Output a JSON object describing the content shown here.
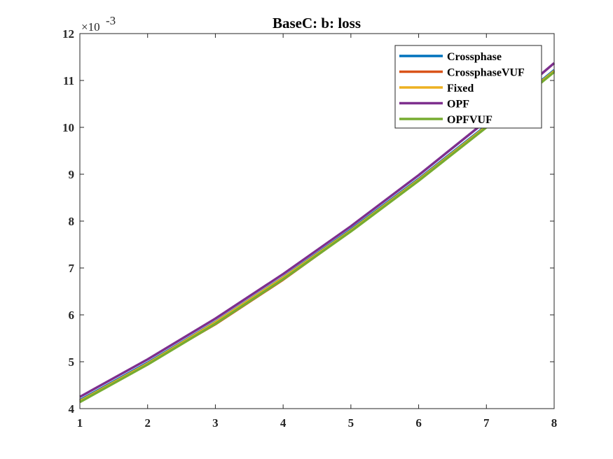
{
  "chart_data": {
    "type": "line",
    "title": "BaseC: b: loss",
    "xlabel": "",
    "ylabel": "",
    "xlim": [
      1,
      8
    ],
    "ylim": [
      4,
      12
    ],
    "y_multiplier_base": "×10",
    "y_multiplier_exp": "-3",
    "xticks": [
      1,
      2,
      3,
      4,
      5,
      6,
      7,
      8
    ],
    "yticks": [
      4,
      5,
      6,
      7,
      8,
      9,
      10,
      11,
      12
    ],
    "grid": false,
    "legend_position": "top-right",
    "x": [
      1,
      2,
      3,
      4,
      5,
      6,
      7,
      8
    ],
    "series": [
      {
        "name": "Crossphase",
        "color": "#0072BD",
        "values": [
          4.18,
          4.98,
          5.85,
          6.8,
          7.82,
          8.9,
          10.04,
          11.22
        ]
      },
      {
        "name": "CrossphaseVUF",
        "color": "#D95319",
        "values": [
          4.16,
          4.96,
          5.8,
          6.75,
          7.79,
          8.88,
          10.02,
          11.2
        ]
      },
      {
        "name": "Fixed",
        "color": "#EDB120",
        "values": [
          4.16,
          4.96,
          5.84,
          6.79,
          7.8,
          8.88,
          10.02,
          11.2
        ]
      },
      {
        "name": "OPF",
        "color": "#7E2F8E",
        "values": [
          4.25,
          5.05,
          5.92,
          6.87,
          7.89,
          8.98,
          10.14,
          11.37
        ]
      },
      {
        "name": "OPFVUF",
        "color": "#77AC30",
        "values": [
          4.14,
          4.94,
          5.81,
          6.76,
          7.78,
          8.86,
          10.0,
          11.18
        ]
      }
    ]
  }
}
